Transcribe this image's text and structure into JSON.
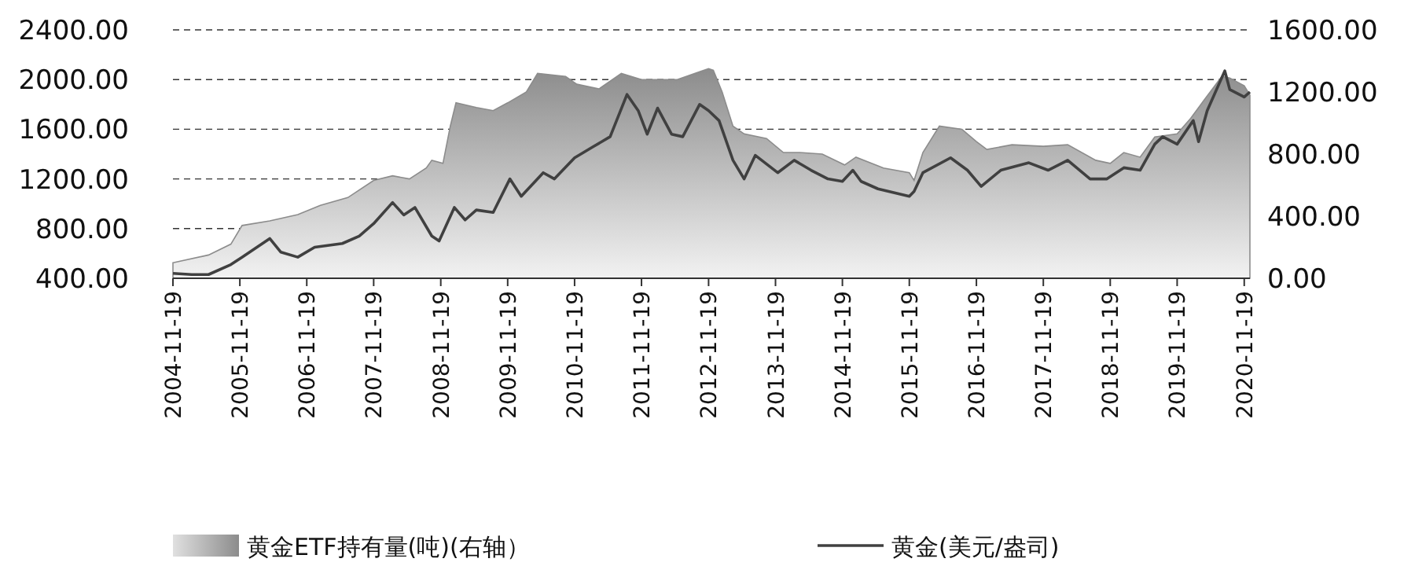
{
  "chart_data": {
    "type": "line",
    "xlim": [
      "2004-11-19",
      "2020-12-20"
    ],
    "xticks": [
      "2004-11-19",
      "2005-11-19",
      "2006-11-19",
      "2007-11-19",
      "2008-11-19",
      "2009-11-19",
      "2010-11-19",
      "2011-11-19",
      "2012-11-19",
      "2013-11-19",
      "2014-11-19",
      "2015-11-19",
      "2016-11-19",
      "2017-11-19",
      "2018-11-19",
      "2019-11-19",
      "2020-11-19"
    ],
    "ylim": [
      400,
      2400
    ],
    "yticks": [
      {
        "value": 400,
        "label": "400.00"
      },
      {
        "value": 800,
        "label": "800.00"
      },
      {
        "value": 1200,
        "label": "1200.00"
      },
      {
        "value": 1600,
        "label": "1600.00"
      },
      {
        "value": 2000,
        "label": "2000.00"
      },
      {
        "value": 2400,
        "label": "2400.00"
      }
    ],
    "y2lim": [
      0,
      1600
    ],
    "y2ticks": [
      {
        "value": 0,
        "label": "0.00"
      },
      {
        "value": 400,
        "label": "400.00"
      },
      {
        "value": 800,
        "label": "800.00"
      },
      {
        "value": 1200,
        "label": "1200.00"
      },
      {
        "value": 1600,
        "label": "1600.00"
      }
    ],
    "grid": "y",
    "legend": "bottom",
    "line_style": "solid",
    "series": [
      {
        "name": "黄金ETF持有量(吨)(右轴）",
        "type": "area",
        "axis": "y2",
        "color": "#8c8c8c",
        "x": [
          "2004-11-19",
          "2005-06-01",
          "2005-10-01",
          "2005-12-01",
          "2006-05-01",
          "2006-10-01",
          "2007-02-01",
          "2007-07-01",
          "2007-11-19",
          "2008-03-01",
          "2008-06-01",
          "2008-09-01",
          "2008-10-01",
          "2008-12-01",
          "2009-01-10",
          "2009-02-10",
          "2009-06-01",
          "2009-09-01",
          "2009-11-19",
          "2010-03-01",
          "2010-05-01",
          "2010-10-01",
          "2010-12-01",
          "2011-04-01",
          "2011-08-01",
          "2011-11-19",
          "2012-06-01",
          "2012-10-01",
          "2012-11-19",
          "2012-12-15",
          "2013-02-01",
          "2013-04-01",
          "2013-06-01",
          "2013-10-01",
          "2014-01-01",
          "2014-04-01",
          "2014-08-01",
          "2014-12-01",
          "2015-02-01",
          "2015-07-01",
          "2015-11-19",
          "2015-12-15",
          "2016-02-01",
          "2016-05-01",
          "2016-09-01",
          "2016-11-19",
          "2017-01-15",
          "2017-06-01",
          "2017-11-19",
          "2018-04-01",
          "2018-09-01",
          "2018-11-19",
          "2019-02-01",
          "2019-05-01",
          "2019-07-20",
          "2019-11-19",
          "2020-02-01",
          "2020-04-15",
          "2020-07-20",
          "2020-09-01",
          "2020-11-19",
          "2020-12-20"
        ],
        "values": [
          100,
          150,
          220,
          340,
          370,
          410,
          470,
          520,
          630,
          660,
          640,
          710,
          760,
          740,
          980,
          1130,
          1100,
          1080,
          1130,
          1200,
          1320,
          1300,
          1250,
          1220,
          1320,
          1280,
          1280,
          1330,
          1350,
          1340,
          1200,
          980,
          930,
          900,
          810,
          810,
          800,
          730,
          780,
          710,
          680,
          630,
          810,
          980,
          960,
          880,
          830,
          860,
          850,
          860,
          760,
          740,
          810,
          780,
          910,
          930,
          1030,
          1150,
          1300,
          1290,
          1240,
          1180
        ]
      },
      {
        "name": "黄金(美元/盎司)",
        "color": "#404040",
        "x": [
          "2004-11-19",
          "2005-03-01",
          "2005-06-01",
          "2005-10-01",
          "2005-12-01",
          "2006-05-01",
          "2006-07-01",
          "2006-10-01",
          "2007-01-01",
          "2007-06-01",
          "2007-09-01",
          "2007-11-19",
          "2008-03-01",
          "2008-05-01",
          "2008-07-01",
          "2008-10-01",
          "2008-11-10",
          "2009-02-01",
          "2009-04-01",
          "2009-06-01",
          "2009-09-01",
          "2009-12-01",
          "2010-02-01",
          "2010-06-01",
          "2010-08-01",
          "2010-11-19",
          "2011-03-01",
          "2011-06-01",
          "2011-09-01",
          "2011-11-01",
          "2011-12-20",
          "2012-02-15",
          "2012-05-01",
          "2012-07-01",
          "2012-10-01",
          "2012-11-19",
          "2013-01-15",
          "2013-04-01",
          "2013-06-01",
          "2013-08-01",
          "2013-12-01",
          "2014-03-01",
          "2014-06-01",
          "2014-09-01",
          "2014-11-19",
          "2015-01-15",
          "2015-03-01",
          "2015-06-01",
          "2015-11-19",
          "2015-12-15",
          "2016-02-01",
          "2016-07-01",
          "2016-10-01",
          "2016-12-15",
          "2017-04-01",
          "2017-09-01",
          "2017-12-15",
          "2018-04-01",
          "2018-08-01",
          "2018-11-01",
          "2019-02-01",
          "2019-05-01",
          "2019-07-20",
          "2019-09-01",
          "2019-11-19",
          "2020-02-15",
          "2020-03-15",
          "2020-05-01",
          "2020-08-05",
          "2020-09-01",
          "2020-11-19",
          "2020-12-20"
        ],
        "values": [
          440,
          430,
          430,
          510,
          570,
          720,
          610,
          570,
          650,
          680,
          740,
          840,
          1010,
          910,
          970,
          740,
          700,
          970,
          870,
          950,
          930,
          1200,
          1060,
          1250,
          1200,
          1370,
          1460,
          1540,
          1880,
          1750,
          1560,
          1770,
          1560,
          1540,
          1800,
          1750,
          1670,
          1350,
          1200,
          1390,
          1250,
          1350,
          1270,
          1200,
          1180,
          1270,
          1180,
          1120,
          1060,
          1100,
          1250,
          1370,
          1270,
          1140,
          1270,
          1330,
          1270,
          1350,
          1200,
          1200,
          1290,
          1270,
          1480,
          1540,
          1480,
          1670,
          1500,
          1750,
          2070,
          1920,
          1860,
          1900
        ]
      }
    ]
  }
}
